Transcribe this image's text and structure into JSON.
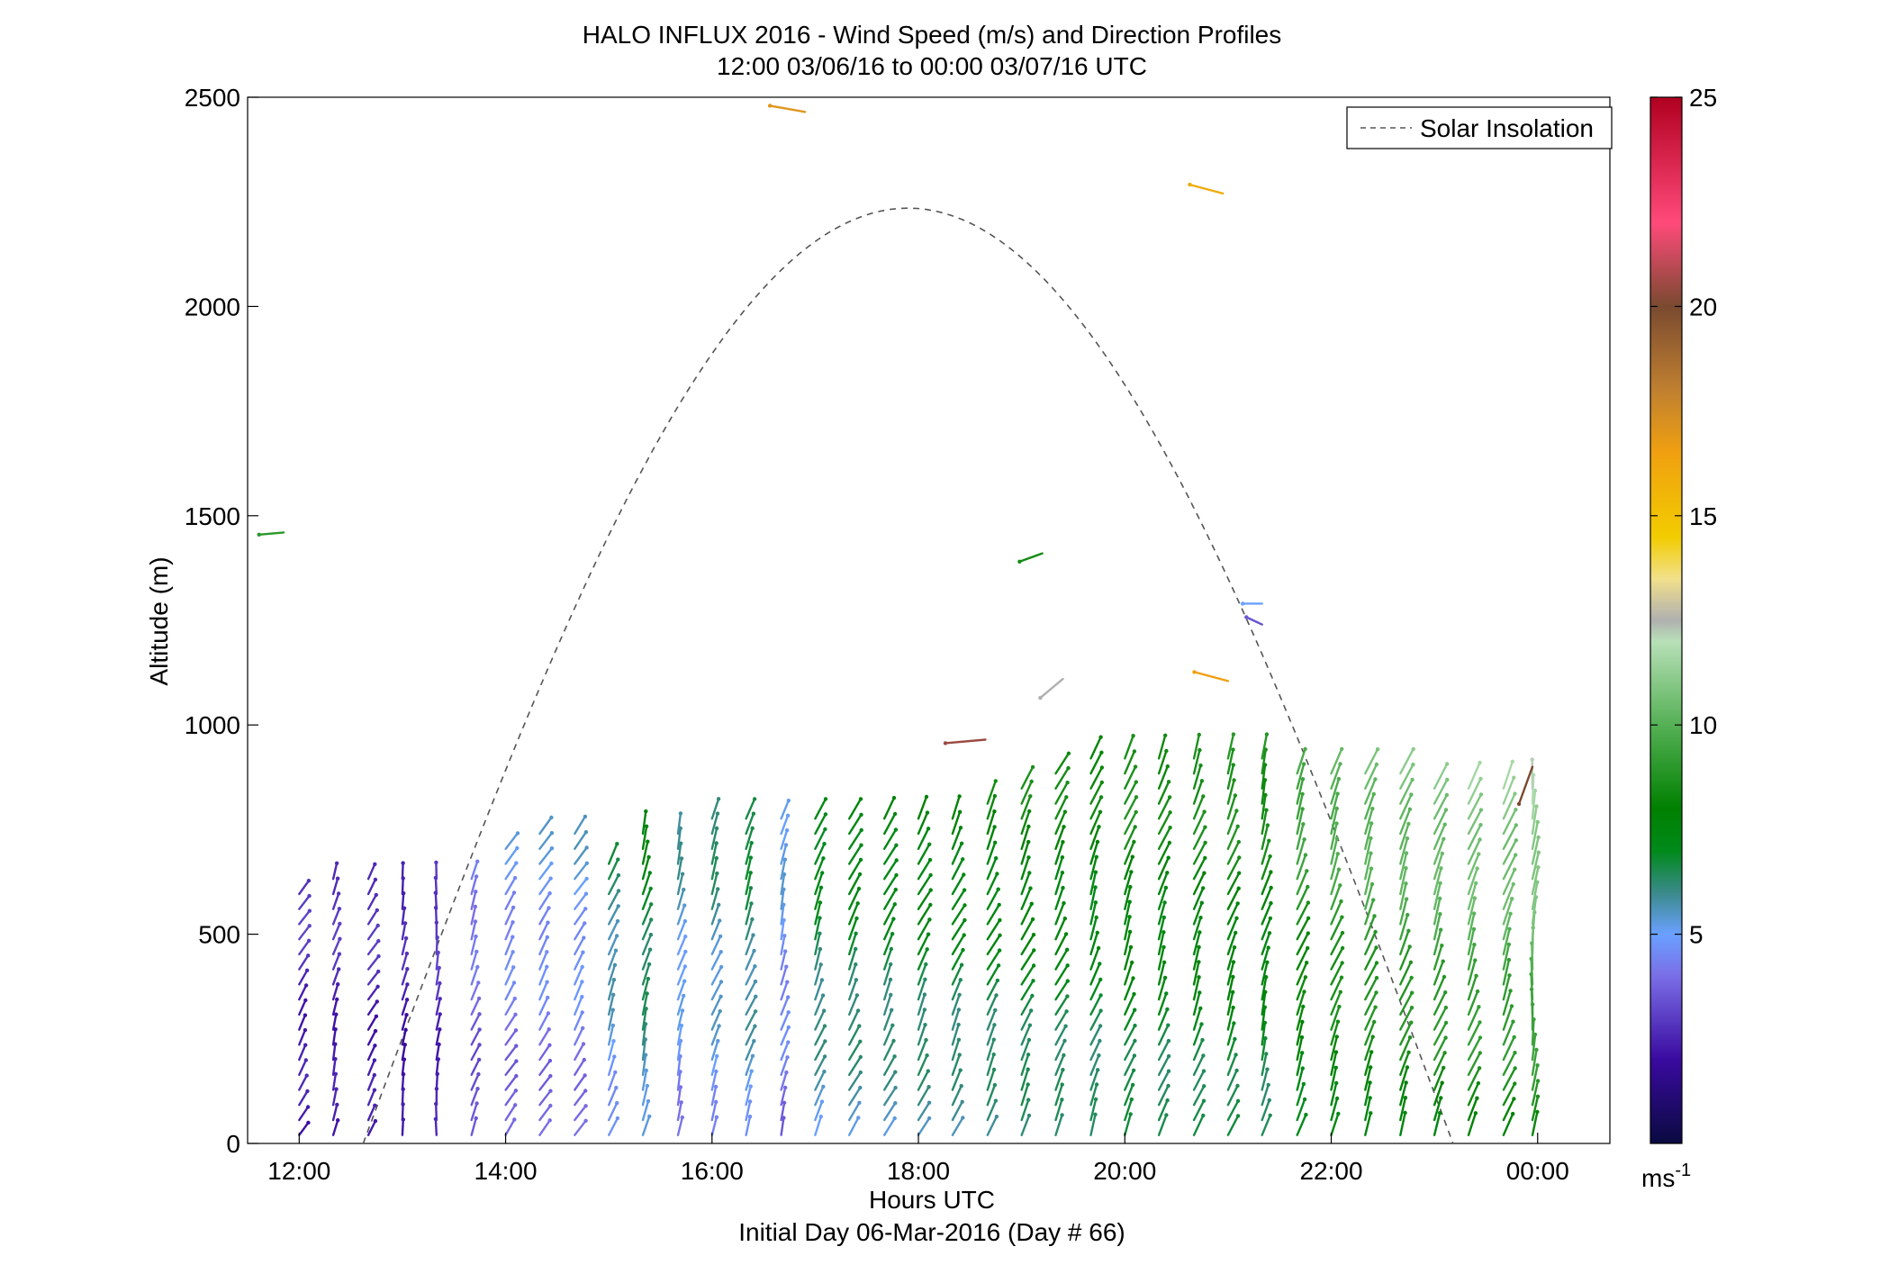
{
  "chart_data": {
    "type": "scatter",
    "title": "HALO INFLUX 2016 - Wind Speed (m/s) and Direction Profiles",
    "subtitle": "12:00 03/06/16 to 00:00 03/07/16  UTC",
    "xlabel": "Hours UTC",
    "xlabel2": "Initial Day 06-Mar-2016 (Day # 66)",
    "ylabel": "Altitude (m)",
    "xlim": [
      11.5,
      24.7
    ],
    "ylim": [
      0,
      2500
    ],
    "x_ticks": [
      12,
      14,
      16,
      18,
      20,
      22,
      24
    ],
    "x_tick_labels": [
      "12:00",
      "14:00",
      "16:00",
      "18:00",
      "20:00",
      "22:00",
      "00:00"
    ],
    "y_ticks": [
      0,
      500,
      1000,
      1500,
      2000,
      2500
    ],
    "y_tick_labels": [
      "0",
      "500",
      "1000",
      "1500",
      "2000",
      "2500"
    ],
    "colorbar": {
      "label": "ms-1",
      "label_main": "ms",
      "label_sup": "-1",
      "range": [
        0,
        25
      ],
      "ticks": [
        5,
        10,
        15,
        20,
        25
      ],
      "tick_labels": [
        "5",
        "10",
        "15",
        "20",
        "25"
      ],
      "stops": [
        {
          "v": 0,
          "color": "#0a0a40"
        },
        {
          "v": 2,
          "color": "#3a0aa0"
        },
        {
          "v": 4,
          "color": "#7a6ee6"
        },
        {
          "v": 5,
          "color": "#6aa0ff"
        },
        {
          "v": 6,
          "color": "#3a8a8a"
        },
        {
          "v": 7,
          "color": "#008a1a"
        },
        {
          "v": 8,
          "color": "#008000"
        },
        {
          "v": 10,
          "color": "#55b055"
        },
        {
          "v": 12,
          "color": "#b8e0b8"
        },
        {
          "v": 12.5,
          "color": "#b0b0b0"
        },
        {
          "v": 13.5,
          "color": "#f2e08a"
        },
        {
          "v": 14.5,
          "color": "#f2cc00"
        },
        {
          "v": 16.5,
          "color": "#f0a010"
        },
        {
          "v": 18,
          "color": "#c08030"
        },
        {
          "v": 20,
          "color": "#7a4a30"
        },
        {
          "v": 22,
          "color": "#ff4a7a"
        },
        {
          "v": 25,
          "color": "#b00020"
        }
      ]
    },
    "legend": {
      "position": "top-right",
      "entries": [
        {
          "name": "Solar Insolation",
          "style": "dashed",
          "color": "#555555"
        }
      ]
    },
    "solar_insolation": {
      "start_hour": 12.62,
      "end_hour": 23.18,
      "peak_hour": 17.9,
      "peak_altitude": 2235
    },
    "profiles": [
      {
        "hour": 12.0,
        "top": 620,
        "speed": 3.0,
        "dir": 150
      },
      {
        "hour": 12.33,
        "top": 660,
        "speed": 3.0,
        "dir": 165
      },
      {
        "hour": 12.67,
        "top": 660,
        "speed": 3.0,
        "dir": 150
      },
      {
        "hour": 13.0,
        "top": 660,
        "speed": 2.8,
        "dir": 170
      },
      {
        "hour": 13.33,
        "top": 660,
        "speed": 3.2,
        "dir": 175
      },
      {
        "hour": 13.67,
        "top": 640,
        "speed": 4.5,
        "dir": 160
      },
      {
        "hour": 14.0,
        "top": 710,
        "speed": 5.0,
        "dir": 150
      },
      {
        "hour": 14.33,
        "top": 740,
        "speed": 5.2,
        "dir": 150
      },
      {
        "hour": 14.67,
        "top": 750,
        "speed": 5.4,
        "dir": 150
      },
      {
        "hour": 15.0,
        "top": 700,
        "speed": 6.5,
        "dir": 160
      },
      {
        "hour": 15.33,
        "top": 750,
        "speed": 7.5,
        "dir": 165
      },
      {
        "hour": 15.67,
        "top": 760,
        "speed": 6.0,
        "dir": 165
      },
      {
        "hour": 16.0,
        "top": 780,
        "speed": 6.5,
        "dir": 160
      },
      {
        "hour": 16.33,
        "top": 790,
        "speed": 7.0,
        "dir": 160
      },
      {
        "hour": 16.67,
        "top": 790,
        "speed": 5.5,
        "dir": 165
      },
      {
        "hour": 17.0,
        "top": 800,
        "speed": 7.5,
        "dir": 160
      },
      {
        "hour": 17.33,
        "top": 810,
        "speed": 7.8,
        "dir": 155
      },
      {
        "hour": 17.67,
        "top": 810,
        "speed": 7.8,
        "dir": 155
      },
      {
        "hour": 18.0,
        "top": 810,
        "speed": 8.0,
        "dir": 155
      },
      {
        "hour": 18.33,
        "top": 810,
        "speed": 8.0,
        "dir": 155
      },
      {
        "hour": 18.67,
        "top": 830,
        "speed": 8.2,
        "dir": 155
      },
      {
        "hour": 19.0,
        "top": 870,
        "speed": 8.5,
        "dir": 155
      },
      {
        "hour": 19.33,
        "top": 900,
        "speed": 8.5,
        "dir": 155
      },
      {
        "hour": 19.67,
        "top": 930,
        "speed": 8.5,
        "dir": 160
      },
      {
        "hour": 20.0,
        "top": 940,
        "speed": 9.0,
        "dir": 160
      },
      {
        "hour": 20.33,
        "top": 950,
        "speed": 8.8,
        "dir": 160
      },
      {
        "hour": 20.67,
        "top": 940,
        "speed": 9.0,
        "dir": 160
      },
      {
        "hour": 21.0,
        "top": 940,
        "speed": 9.2,
        "dir": 160
      },
      {
        "hour": 21.33,
        "top": 940,
        "speed": 9.0,
        "dir": 165
      },
      {
        "hour": 21.67,
        "top": 900,
        "speed": 10.0,
        "dir": 160
      },
      {
        "hour": 22.0,
        "top": 900,
        "speed": 10.5,
        "dir": 160
      },
      {
        "hour": 22.33,
        "top": 900,
        "speed": 10.8,
        "dir": 160
      },
      {
        "hour": 22.67,
        "top": 890,
        "speed": 11.0,
        "dir": 160
      },
      {
        "hour": 23.0,
        "top": 880,
        "speed": 11.2,
        "dir": 160
      },
      {
        "hour": 23.33,
        "top": 870,
        "speed": 11.5,
        "dir": 160
      },
      {
        "hour": 23.67,
        "top": 870,
        "speed": 11.5,
        "dir": 160
      },
      {
        "hour": 23.95,
        "top": 880,
        "speed": 12.0,
        "dir": 175
      }
    ],
    "isolated_vectors": [
      {
        "hour": 11.85,
        "alt": 1460,
        "speed": 9.0,
        "dir": 275
      },
      {
        "hour": 16.9,
        "alt": 2465,
        "speed": 17.0,
        "dir": 260
      },
      {
        "hour": 20.95,
        "alt": 2270,
        "speed": 16.0,
        "dir": 255
      },
      {
        "hour": 19.2,
        "alt": 1410,
        "speed": 8.5,
        "dir": 290
      },
      {
        "hour": 21.33,
        "alt": 1290,
        "speed": 5.0,
        "dir": 270
      },
      {
        "hour": 21.33,
        "alt": 1240,
        "speed": 3.5,
        "dir": 245
      },
      {
        "hour": 19.4,
        "alt": 1110,
        "speed": 12.5,
        "dir": 310
      },
      {
        "hour": 21.0,
        "alt": 1105,
        "speed": 16.5,
        "dir": 255
      },
      {
        "hour": 18.65,
        "alt": 965,
        "speed": 20.5,
        "dir": 275
      },
      {
        "hour": 23.95,
        "alt": 900,
        "speed": 20.0,
        "dir": 340
      }
    ]
  }
}
